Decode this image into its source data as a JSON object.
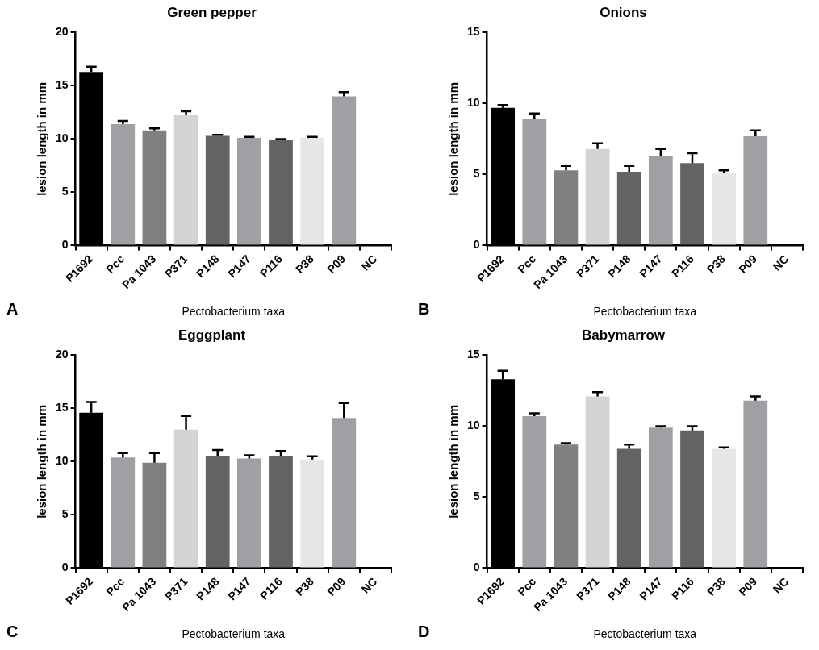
{
  "chart_data": [
    {
      "type": "bar",
      "title": "Green pepper",
      "xlabel": "Pectobacterium taxa",
      "ylabel": "lesion length in mm",
      "annotations": [
        "A"
      ],
      "categories": [
        "P1692",
        "Pcc",
        "Pa 1043",
        "P371",
        "P148",
        "P147",
        "P116",
        "P38",
        "P09",
        "NC"
      ],
      "values": [
        16.3,
        11.4,
        10.8,
        12.3,
        10.3,
        10.1,
        9.9,
        10.1,
        14.0,
        0
      ],
      "errors": [
        [
          16.3,
          16.8
        ],
        [
          11.4,
          11.7
        ],
        [
          10.8,
          11.0
        ],
        [
          12.3,
          12.6
        ],
        [
          10.3,
          10.4
        ],
        [
          10.1,
          10.2
        ],
        [
          9.9,
          10.0
        ],
        [
          10.1,
          10.2
        ],
        [
          14.0,
          14.4
        ],
        null
      ],
      "colors": [
        "#000000",
        "#a0a0a4",
        "#808080",
        "#d4d4d4",
        "#636363",
        "#a0a0a4",
        "#636363",
        "#e6e6e6",
        "#a0a0a4",
        "#a0a0a4"
      ],
      "ylim": [
        0,
        20
      ],
      "yticks": [
        0,
        5,
        10,
        15,
        20
      ],
      "grid": false,
      "legend": false
    },
    {
      "type": "bar",
      "title": "Onions",
      "xlabel": "Pectobacterium taxa",
      "ylabel": "lesion length in mm",
      "annotations": [
        "B"
      ],
      "categories": [
        "P1692",
        "Pcc",
        "Pa 1043",
        "P371",
        "P148",
        "P147",
        "P116",
        "P38",
        "P09",
        "NC"
      ],
      "values": [
        9.7,
        8.9,
        5.3,
        6.8,
        5.2,
        6.3,
        5.8,
        5.1,
        7.7,
        0
      ],
      "errors": [
        [
          9.7,
          9.9
        ],
        [
          8.9,
          9.3
        ],
        [
          5.3,
          5.6
        ],
        [
          6.8,
          7.2
        ],
        [
          5.2,
          5.6
        ],
        [
          6.3,
          6.8
        ],
        [
          5.8,
          6.5
        ],
        [
          5.1,
          5.3
        ],
        [
          7.7,
          8.1
        ],
        null
      ],
      "colors": [
        "#000000",
        "#a0a0a4",
        "#808080",
        "#d4d4d4",
        "#636363",
        "#a0a0a4",
        "#636363",
        "#e6e6e6",
        "#a0a0a4",
        "#a0a0a4"
      ],
      "ylim": [
        0,
        15
      ],
      "yticks": [
        0,
        5,
        10,
        15
      ],
      "grid": false,
      "legend": false
    },
    {
      "type": "bar",
      "title": "Egggplant",
      "xlabel": "Pectobacterium taxa",
      "ylabel": "lesion length in mm",
      "annotations": [
        "C"
      ],
      "categories": [
        "P1692",
        "Pcc",
        "Pa 1043",
        "P371",
        "P148",
        "P147",
        "P116",
        "P38",
        "P09",
        "NC"
      ],
      "values": [
        14.6,
        10.4,
        9.9,
        13.0,
        10.5,
        10.3,
        10.5,
        10.2,
        14.1,
        0
      ],
      "errors": [
        [
          14.6,
          15.6
        ],
        [
          10.4,
          10.8
        ],
        [
          9.9,
          10.8
        ],
        [
          13.0,
          14.3
        ],
        [
          10.5,
          11.1
        ],
        [
          10.3,
          10.6
        ],
        [
          10.5,
          11.0
        ],
        [
          10.2,
          10.5
        ],
        [
          14.1,
          15.5
        ],
        null
      ],
      "colors": [
        "#000000",
        "#a0a0a4",
        "#808080",
        "#d4d4d4",
        "#636363",
        "#a0a0a4",
        "#636363",
        "#e6e6e6",
        "#a0a0a4",
        "#a0a0a4"
      ],
      "ylim": [
        0,
        20
      ],
      "yticks": [
        0,
        5,
        10,
        15,
        20
      ],
      "grid": false,
      "legend": false
    },
    {
      "type": "bar",
      "title": "Babymarrow",
      "xlabel": "Pectobacterium taxa",
      "ylabel": "lesion length in mm",
      "annotations": [
        "D"
      ],
      "categories": [
        "P1692",
        "Pcc",
        "Pa 1043",
        "P371",
        "P148",
        "P147",
        "P116",
        "P38",
        "P09",
        "NC"
      ],
      "values": [
        13.3,
        10.7,
        8.7,
        12.1,
        8.4,
        9.9,
        9.7,
        8.4,
        11.8,
        0
      ],
      "errors": [
        [
          13.3,
          13.9
        ],
        [
          10.7,
          10.9
        ],
        [
          8.7,
          8.8
        ],
        [
          12.1,
          12.4
        ],
        [
          8.4,
          8.7
        ],
        [
          9.9,
          10.0
        ],
        [
          9.7,
          10.0
        ],
        [
          8.4,
          8.5
        ],
        [
          11.8,
          12.1
        ],
        null
      ],
      "colors": [
        "#000000",
        "#a0a0a4",
        "#808080",
        "#d4d4d4",
        "#636363",
        "#a0a0a4",
        "#636363",
        "#e6e6e6",
        "#a0a0a4",
        "#a0a0a4"
      ],
      "ylim": [
        0,
        15
      ],
      "yticks": [
        0,
        5,
        10,
        15
      ],
      "grid": false,
      "legend": false
    }
  ]
}
